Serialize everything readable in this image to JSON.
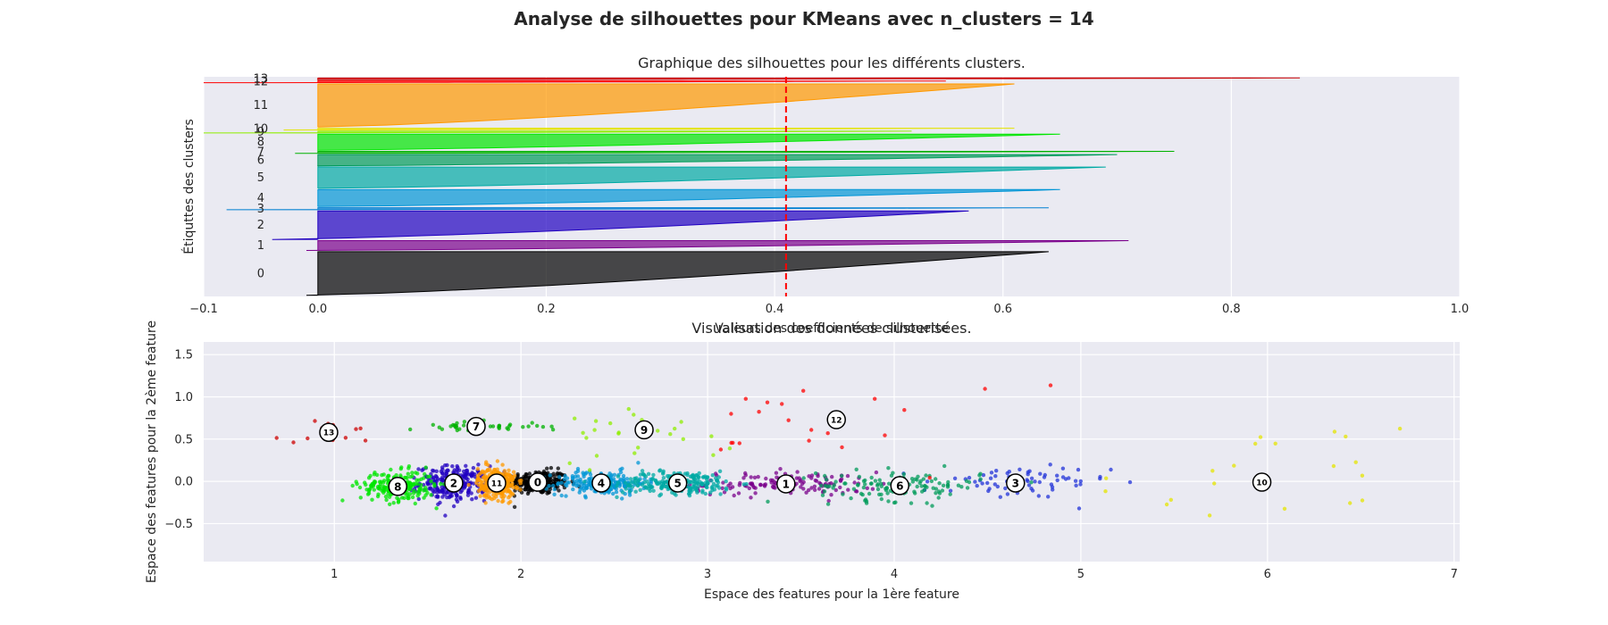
{
  "figure": {
    "suptitle": "Analyse de silhouettes pour KMeans avec n_clusters = 14"
  },
  "chart_data": [
    {
      "type": "silhouette",
      "title": "Graphique des silhouettes pour les différents clusters.",
      "xlabel": "Valeurs des coefficients de silhouette",
      "ylabel": "Étiquttes des clusters",
      "xlim": [
        -0.1,
        1.0
      ],
      "xticks": [
        "−0.1",
        "0.0",
        "0.2",
        "0.4",
        "0.6",
        "0.8",
        "1.0"
      ],
      "xtick_values": [
        -0.1,
        0.0,
        0.2,
        0.4,
        0.6,
        0.8,
        1.0
      ],
      "average_silhouette": 0.41,
      "grid": true,
      "clusters": [
        {
          "label": "0",
          "y_range": [
            10,
            377
          ],
          "min": -0.01,
          "max": 0.64,
          "color": "#000000"
        },
        {
          "label": "1",
          "y_range": [
            387,
            470
          ],
          "min": -0.01,
          "max": 0.71,
          "color": "#7a008b"
        },
        {
          "label": "2",
          "y_range": [
            480,
            720
          ],
          "min": -0.04,
          "max": 0.57,
          "color": "#2000c0"
        },
        {
          "label": "3",
          "y_range": [
            730,
            747
          ],
          "min": -0.08,
          "max": 0.64,
          "color": "#007fd1"
        },
        {
          "label": "4",
          "y_range": [
            757,
            900
          ],
          "min": 0.0,
          "max": 0.65,
          "color": "#0095d6"
        },
        {
          "label": "5",
          "y_range": [
            910,
            1090
          ],
          "min": 0.0,
          "max": 0.69,
          "color": "#00a9a4"
        },
        {
          "label": "6",
          "y_range": [
            1100,
            1195
          ],
          "min": 0.0,
          "max": 0.7,
          "color": "#009b5a"
        },
        {
          "label": "7",
          "y_range": [
            1205,
            1222
          ],
          "min": -0.02,
          "max": 0.75,
          "color": "#00b200"
        },
        {
          "label": "8",
          "y_range": [
            1232,
            1367
          ],
          "min": 0.0,
          "max": 0.65,
          "color": "#00e600"
        },
        {
          "label": "9",
          "y_range": [
            1377,
            1392
          ],
          "min": -0.1,
          "max": 0.52,
          "color": "#8fee00"
        },
        {
          "label": "10",
          "y_range": [
            1402,
            1417
          ],
          "min": -0.03,
          "max": 0.61,
          "color": "#e4e400"
        },
        {
          "label": "11",
          "y_range": [
            1427,
            1790
          ],
          "min": 0.0,
          "max": 0.61,
          "color": "#ff9900"
        },
        {
          "label": "12",
          "y_range": [
            1800,
            1815
          ],
          "min": -0.1,
          "max": 0.55,
          "color": "#ff0000"
        },
        {
          "label": "13",
          "y_range": [
            1825,
            1840
          ],
          "min": 0.0,
          "max": 0.86,
          "color": "#cc0000"
        }
      ]
    },
    {
      "type": "scatter",
      "title": "Visualisation des données clusterisées.",
      "xlabel": "Espace des features pour la 1ère feature",
      "ylabel": "Espace des features pour la 2ème feature",
      "xlim": [
        0.3,
        7.03
      ],
      "ylim": [
        -0.95,
        1.65
      ],
      "xticks": [
        "1",
        "2",
        "3",
        "4",
        "5",
        "6",
        "7"
      ],
      "xtick_values": [
        1,
        2,
        3,
        4,
        5,
        6,
        7
      ],
      "yticks": [
        "−0.5",
        "0.0",
        "0.5",
        "1.0",
        "1.5"
      ],
      "ytick_values": [
        -0.5,
        0.0,
        0.5,
        1.0,
        1.5
      ],
      "grid": true,
      "clusters": [
        {
          "label": "0",
          "center": [
            2.09,
            -0.01
          ],
          "spread": [
            0.08,
            0.07
          ],
          "n": 260,
          "color": "#000000"
        },
        {
          "label": "1",
          "center": [
            3.42,
            -0.03
          ],
          "spread": [
            0.25,
            0.07
          ],
          "n": 140,
          "color": "#7a008b"
        },
        {
          "label": "2",
          "center": [
            1.64,
            -0.02
          ],
          "spread": [
            0.09,
            0.1
          ],
          "n": 260,
          "color": "#2000c0"
        },
        {
          "label": "3",
          "center": [
            4.65,
            -0.02
          ],
          "spread": [
            0.25,
            0.1
          ],
          "n": 70,
          "color": "#2233d8"
        },
        {
          "label": "4",
          "center": [
            2.43,
            -0.02
          ],
          "spread": [
            0.12,
            0.07
          ],
          "n": 220,
          "color": "#0095d6"
        },
        {
          "label": "5",
          "center": [
            2.84,
            -0.02
          ],
          "spread": [
            0.16,
            0.07
          ],
          "n": 240,
          "color": "#00a9a4"
        },
        {
          "label": "6",
          "center": [
            4.03,
            -0.05
          ],
          "spread": [
            0.22,
            0.09
          ],
          "n": 130,
          "color": "#009b5a"
        },
        {
          "label": "7",
          "center": [
            1.76,
            0.65
          ],
          "spread": [
            0.18,
            0.03
          ],
          "n": 45,
          "color": "#00b200"
        },
        {
          "label": "8",
          "center": [
            1.34,
            -0.06
          ],
          "spread": [
            0.1,
            0.09
          ],
          "n": 220,
          "color": "#00e600"
        },
        {
          "label": "9",
          "center": [
            2.66,
            0.61
          ],
          "spread": [
            0.25,
            0.18
          ],
          "n": 25,
          "color": "#8fee00"
        },
        {
          "label": "10",
          "center": [
            5.97,
            -0.01
          ],
          "spread": [
            0.45,
            0.35
          ],
          "n": 20,
          "color": "#e4e400"
        },
        {
          "label": "11",
          "center": [
            1.87,
            -0.02
          ],
          "spread": [
            0.05,
            0.09
          ],
          "n": 300,
          "color": "#ff9900"
        },
        {
          "label": "12",
          "center": [
            3.69,
            0.73
          ],
          "spread": [
            0.4,
            0.35
          ],
          "n": 22,
          "color": "#ff0000"
        },
        {
          "label": "13",
          "center": [
            0.97,
            0.58
          ],
          "spread": [
            0.12,
            0.08
          ],
          "n": 14,
          "color": "#cc0000"
        }
      ]
    }
  ]
}
